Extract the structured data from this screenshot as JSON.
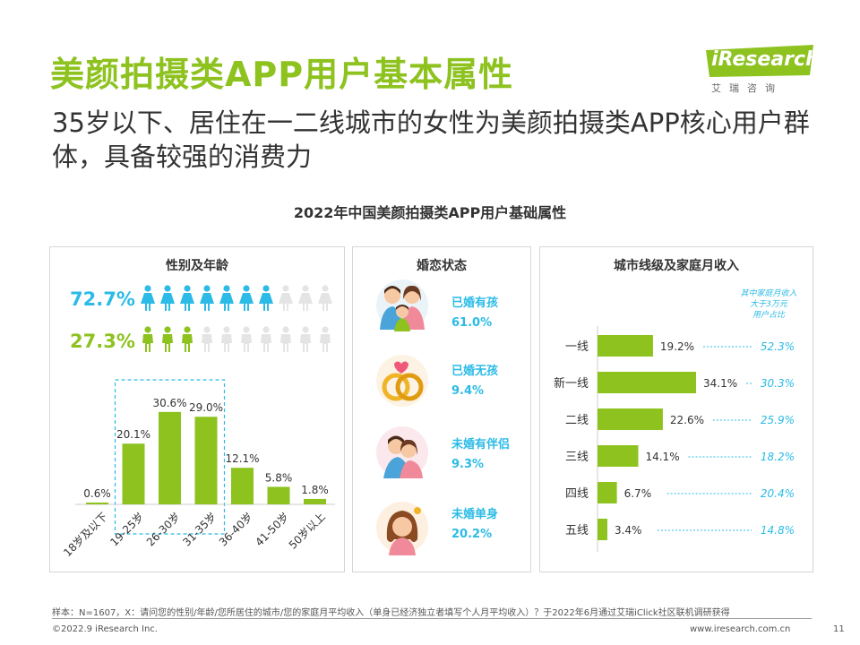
{
  "header": {
    "title": "美颜拍摄类APP用户基本属性",
    "subtitle": "35岁以下、居住在一二线城市的女性为美颜拍摄类APP核心用户群体，具备较强的消费力",
    "logo_text": "iResearch",
    "logo_cn": "艾瑞咨询"
  },
  "chart_title": "2022年中国美颜拍摄类APP用户基础属性",
  "colors": {
    "green": "#8dc21f",
    "blue": "#2bbbe6",
    "grey_icon": "#e4e4e4"
  },
  "gender": {
    "title": "性别及年龄",
    "female_pct": "72.7%",
    "male_pct": "27.3%",
    "female_icons": {
      "filled": 7,
      "total": 10,
      "icon": "female-person-icon"
    },
    "male_icons": {
      "filled": 3,
      "total": 10,
      "icon": "male-person-icon"
    }
  },
  "marriage": {
    "title": "婚恋状态",
    "items": [
      {
        "label": "已婚有孩",
        "value": "61.0%",
        "icon": "family-icon"
      },
      {
        "label": "已婚无孩",
        "value": "9.4%",
        "icon": "wedding-rings-icon"
      },
      {
        "label": "未婚有伴侣",
        "value": "9.3%",
        "icon": "couple-icon"
      },
      {
        "label": "未婚单身",
        "value": "20.2%",
        "icon": "single-woman-icon"
      }
    ]
  },
  "city": {
    "title": "城市线级及家庭月收入",
    "income_note": [
      "其中家庭月收入",
      "大于3万元",
      "用户占比"
    ]
  },
  "chart_data": [
    {
      "type": "bar",
      "title": "性别及年龄",
      "categories": [
        "18岁及以下",
        "19-25岁",
        "26-30岁",
        "31-35岁",
        "36-40岁",
        "41-50岁",
        "50岁以上"
      ],
      "values": [
        0.6,
        20.1,
        30.6,
        29.0,
        12.1,
        5.8,
        1.8
      ],
      "labels": [
        "0.6%",
        "20.1%",
        "30.6%",
        "29.0%",
        "12.1%",
        "5.8%",
        "1.8%"
      ],
      "highlight": [
        "19-25岁",
        "26-30岁",
        "31-35岁"
      ],
      "ylim": [
        0,
        35
      ],
      "color": "#8dc21f"
    },
    {
      "type": "bar",
      "orientation": "horizontal",
      "title": "城市线级及家庭月收入",
      "categories": [
        "一线",
        "新一线",
        "二线",
        "三线",
        "四线",
        "五线"
      ],
      "values": [
        19.2,
        34.1,
        22.6,
        14.1,
        6.7,
        3.4
      ],
      "labels": [
        "19.2%",
        "34.1%",
        "22.6%",
        "14.1%",
        "6.7%",
        "3.4%"
      ],
      "income_share": [
        52.3,
        30.3,
        25.9,
        18.2,
        20.4,
        14.8
      ],
      "income_labels": [
        "52.3%",
        "30.3%",
        "25.9%",
        "18.2%",
        "20.4%",
        "14.8%"
      ],
      "xlim": [
        0,
        40
      ],
      "color": "#8dc21f"
    }
  ],
  "footer": {
    "note": "样本：N=1607，X：请问您的性别/年龄/您所居住的城市/您的家庭月平均收入（单身已经济独立者填写个人月平均收入）？于2022年6月通过艾瑞iClick社区联机调研获得",
    "copyright": "©2022.9 iResearch Inc.",
    "site": "www.iresearch.com.cn",
    "page": "11"
  }
}
